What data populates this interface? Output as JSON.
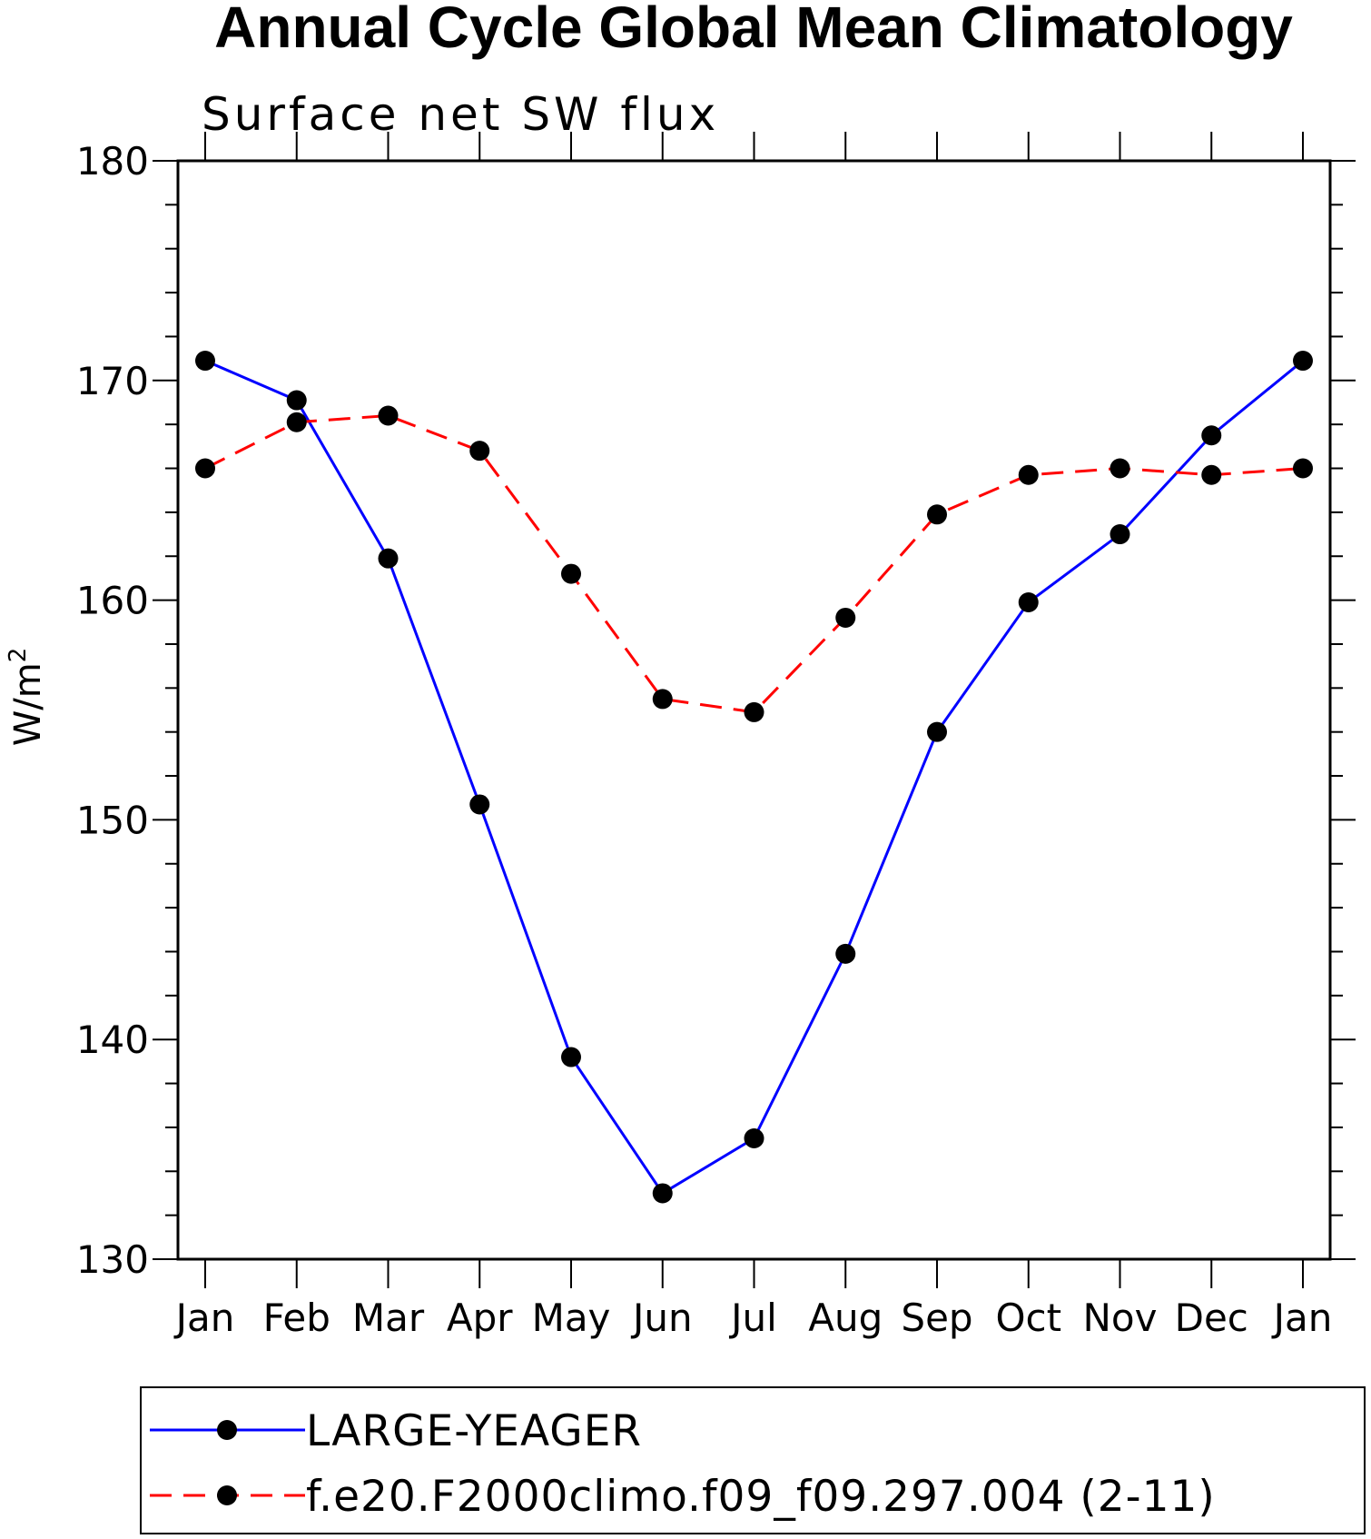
{
  "chart_data": {
    "type": "line",
    "title": "Annual Cycle Global Mean Climatology",
    "subtitle": "Surface net SW flux",
    "xlabel": "",
    "ylabel": "W/m",
    "ylabel_sup": "2",
    "categories": [
      "Jan",
      "Feb",
      "Mar",
      "Apr",
      "May",
      "Jun",
      "Jul",
      "Aug",
      "Sep",
      "Oct",
      "Nov",
      "Dec",
      "Jan"
    ],
    "ylim": [
      130,
      180
    ],
    "yticks": [
      130,
      140,
      150,
      160,
      170,
      180
    ],
    "grid": false,
    "legend_position": "bottom",
    "series": [
      {
        "name": "LARGE-YEAGER",
        "color": "#0000ff",
        "dash": "solid",
        "marker": "circle",
        "values": [
          170.9,
          169.1,
          161.9,
          150.7,
          139.2,
          133.0,
          135.5,
          143.9,
          154.0,
          159.9,
          163.0,
          167.5,
          170.9
        ]
      },
      {
        "name": "f.e20.F2000climo.f09_f09.297.004 (2-11)",
        "color": "#ff0000",
        "dash": "dashed",
        "marker": "circle",
        "values": [
          166.0,
          168.1,
          168.4,
          166.8,
          161.2,
          155.5,
          154.9,
          159.2,
          163.9,
          165.7,
          166.0,
          165.7,
          166.0
        ]
      }
    ]
  }
}
